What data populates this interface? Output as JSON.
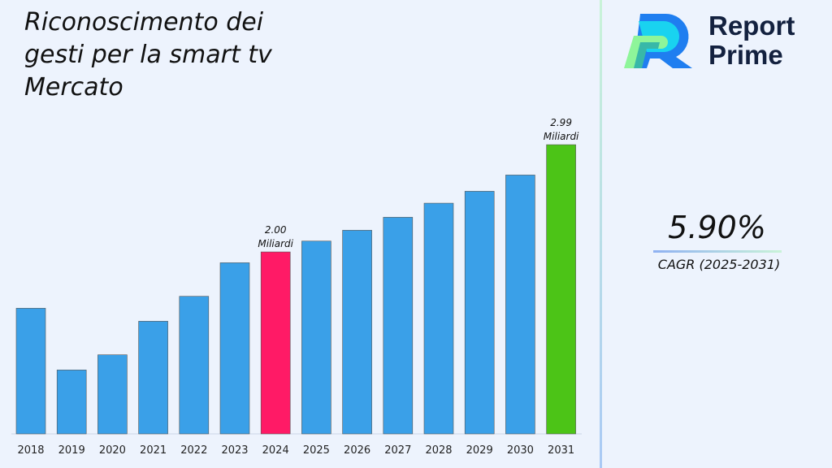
{
  "brand": {
    "name_line1": "Report",
    "name_line2": "Prime"
  },
  "cagr": {
    "value": "5.90%",
    "label": "CAGR (2025-2031)"
  },
  "chart_data": {
    "type": "bar",
    "title": "Riconoscimento dei gesti per la smart tv Mercato",
    "categories": [
      "2018",
      "2019",
      "2020",
      "2021",
      "2022",
      "2023",
      "2024",
      "2025",
      "2026",
      "2027",
      "2028",
      "2029",
      "2030",
      "2031"
    ],
    "values": [
      1.48,
      0.91,
      1.05,
      1.36,
      1.59,
      1.9,
      2.0,
      2.1,
      2.2,
      2.32,
      2.45,
      2.56,
      2.71,
      2.99
    ],
    "ylim": [
      0.32,
      3.2
    ],
    "colors": {
      "default": "#3aa0e8",
      "highlight_2024": "#ff1a66",
      "highlight_2031": "#4cc417"
    },
    "annotations": [
      {
        "category": "2024",
        "value_label": "2.00",
        "unit": "Miliardi"
      },
      {
        "category": "2031",
        "value_label": "2.99",
        "unit": "Miliardi"
      }
    ],
    "grid": false
  }
}
